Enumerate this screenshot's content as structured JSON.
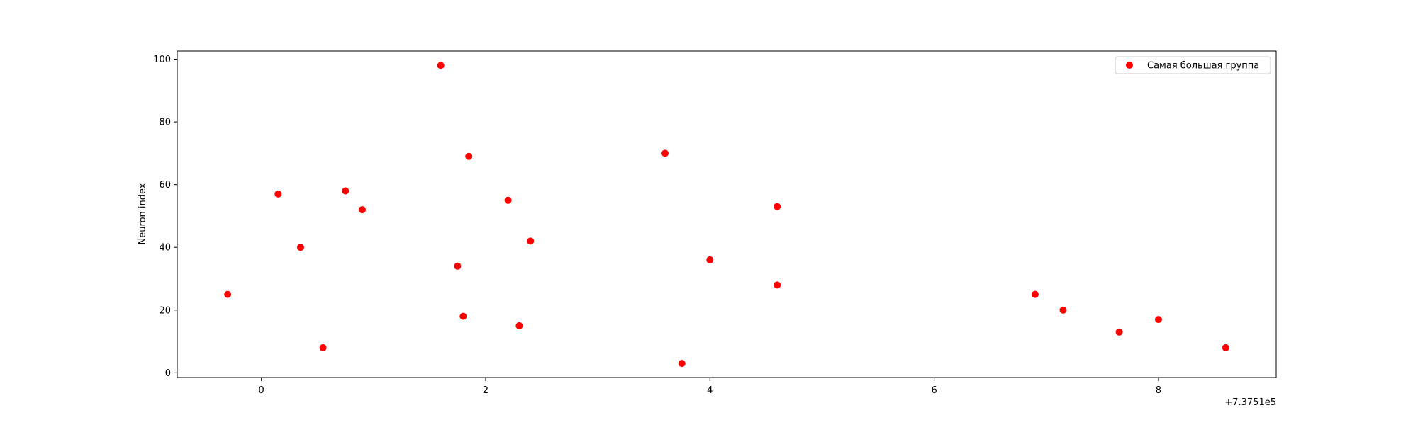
{
  "chart_data": {
    "type": "scatter",
    "title": "",
    "xlabel": "",
    "ylabel": "Neuron index",
    "x_offset_label": "+7.3751e5",
    "xlim": [
      -0.75,
      9.05
    ],
    "ylim": [
      -1.5,
      102.6
    ],
    "xticks": [
      0,
      2,
      4,
      6,
      8
    ],
    "xtick_labels": [
      "0",
      "2",
      "4",
      "6",
      "8"
    ],
    "yticks": [
      0,
      20,
      40,
      60,
      80,
      100
    ],
    "ytick_labels": [
      "0",
      "20",
      "40",
      "60",
      "80",
      "100"
    ],
    "grid": false,
    "legend_position": "top-right",
    "series": [
      {
        "name": "Самая большая группа",
        "color": "#ff0000",
        "marker": "circle",
        "points": [
          {
            "x": -0.3,
            "y": 25
          },
          {
            "x": 0.15,
            "y": 57
          },
          {
            "x": 0.35,
            "y": 40
          },
          {
            "x": 0.55,
            "y": 8
          },
          {
            "x": 0.75,
            "y": 58
          },
          {
            "x": 0.9,
            "y": 52
          },
          {
            "x": 1.6,
            "y": 98
          },
          {
            "x": 1.75,
            "y": 34
          },
          {
            "x": 1.8,
            "y": 18
          },
          {
            "x": 1.85,
            "y": 69
          },
          {
            "x": 2.2,
            "y": 55
          },
          {
            "x": 2.3,
            "y": 15
          },
          {
            "x": 2.4,
            "y": 42
          },
          {
            "x": 3.6,
            "y": 70
          },
          {
            "x": 3.75,
            "y": 3
          },
          {
            "x": 4.0,
            "y": 36
          },
          {
            "x": 4.6,
            "y": 53
          },
          {
            "x": 4.6,
            "y": 28
          },
          {
            "x": 6.9,
            "y": 25
          },
          {
            "x": 7.15,
            "y": 20
          },
          {
            "x": 7.65,
            "y": 13
          },
          {
            "x": 8.0,
            "y": 17
          },
          {
            "x": 8.6,
            "y": 8
          }
        ]
      }
    ]
  }
}
